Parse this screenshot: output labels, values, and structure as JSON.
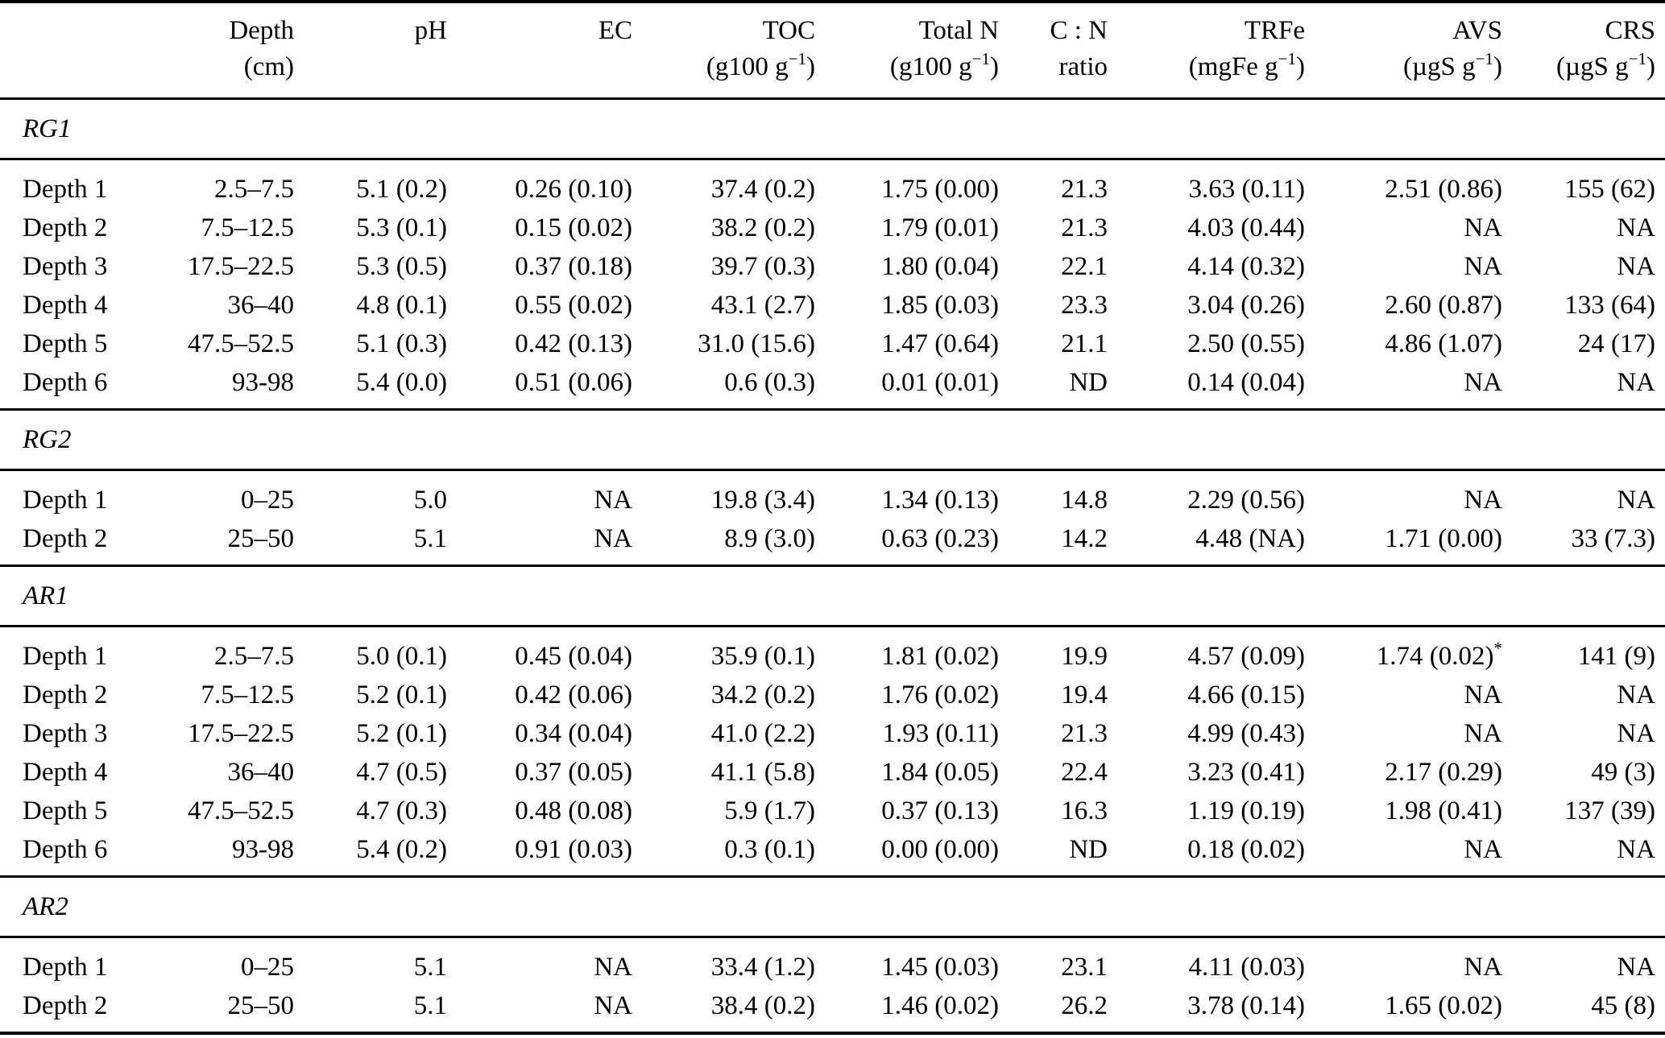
{
  "table": {
    "header": {
      "columns": [
        {
          "id": "row_label",
          "label": "",
          "unit": null
        },
        {
          "id": "depth",
          "label": "Depth",
          "unit": [
            {
              "t": "(cm)"
            }
          ]
        },
        {
          "id": "ph",
          "label": "pH",
          "unit": null
        },
        {
          "id": "ec",
          "label": "EC",
          "unit": null
        },
        {
          "id": "toc",
          "label": "TOC",
          "unit": [
            {
              "t": "(g100 g"
            },
            {
              "t": "−1",
              "sup": true
            },
            {
              "t": ")"
            }
          ]
        },
        {
          "id": "total_n",
          "label": "Total N",
          "unit": [
            {
              "t": "(g100 g"
            },
            {
              "t": "−1",
              "sup": true
            },
            {
              "t": ")"
            }
          ]
        },
        {
          "id": "cn_ratio",
          "label": "C : N",
          "unit": [
            {
              "t": "ratio"
            }
          ]
        },
        {
          "id": "trfe",
          "label": "TRFe",
          "unit": [
            {
              "t": "(mgFe g"
            },
            {
              "t": "−1",
              "sup": true
            },
            {
              "t": ")"
            }
          ]
        },
        {
          "id": "avs",
          "label": "AVS",
          "unit": [
            {
              "t": "(µgS g"
            },
            {
              "t": "−1",
              "sup": true
            },
            {
              "t": ")"
            }
          ]
        },
        {
          "id": "crs",
          "label": "CRS",
          "unit": [
            {
              "t": "(µgS g"
            },
            {
              "t": "−1",
              "sup": true
            },
            {
              "t": ")"
            }
          ]
        }
      ]
    },
    "sections": [
      {
        "name": "RG1",
        "rows": [
          [
            "Depth 1",
            "2.5–7.5",
            "5.1 (0.2)",
            "0.26 (0.10)",
            "37.4 (0.2)",
            "1.75 (0.00)",
            "21.3",
            "3.63 (0.11)",
            "2.51 (0.86)",
            "155 (62)"
          ],
          [
            "Depth 2",
            "7.5–12.5",
            "5.3 (0.1)",
            "0.15 (0.02)",
            "38.2 (0.2)",
            "1.79 (0.01)",
            "21.3",
            "4.03 (0.44)",
            "NA",
            "NA"
          ],
          [
            "Depth 3",
            "17.5–22.5",
            "5.3 (0.5)",
            "0.37 (0.18)",
            "39.7 (0.3)",
            "1.80 (0.04)",
            "22.1",
            "4.14 (0.32)",
            "NA",
            "NA"
          ],
          [
            "Depth 4",
            "36–40",
            "4.8 (0.1)",
            "0.55 (0.02)",
            "43.1 (2.7)",
            "1.85 (0.03)",
            "23.3",
            "3.04 (0.26)",
            "2.60 (0.87)",
            "133 (64)"
          ],
          [
            "Depth 5",
            "47.5–52.5",
            "5.1 (0.3)",
            "0.42 (0.13)",
            "31.0 (15.6)",
            "1.47 (0.64)",
            "21.1",
            "2.50 (0.55)",
            "4.86 (1.07)",
            "24 (17)"
          ],
          [
            "Depth 6",
            "93-98",
            "5.4 (0.0)",
            "0.51 (0.06)",
            "0.6 (0.3)",
            "0.01 (0.01)",
            "ND",
            "0.14 (0.04)",
            "NA",
            "NA"
          ]
        ]
      },
      {
        "name": "RG2",
        "rows": [
          [
            "Depth 1",
            "0–25",
            "5.0",
            "NA",
            "19.8 (3.4)",
            "1.34 (0.13)",
            "14.8",
            "2.29 (0.56)",
            "NA",
            "NA"
          ],
          [
            "Depth 2",
            "25–50",
            "5.1",
            "NA",
            "8.9 (3.0)",
            "0.63 (0.23)",
            "14.2",
            "4.48 (NA)",
            "1.71 (0.00)",
            "33 (7.3)"
          ]
        ]
      },
      {
        "name": "AR1",
        "rows": [
          [
            "Depth 1",
            "2.5–7.5",
            "5.0 (0.1)",
            "0.45 (0.04)",
            "35.9 (0.1)",
            "1.81 (0.02)",
            "19.9",
            "4.57 (0.09)",
            "1.74 (0.02)*",
            "141 (9)"
          ],
          [
            "Depth 2",
            "7.5–12.5",
            "5.2 (0.1)",
            "0.42 (0.06)",
            "34.2 (0.2)",
            "1.76 (0.02)",
            "19.4",
            "4.66 (0.15)",
            "NA",
            "NA"
          ],
          [
            "Depth 3",
            "17.5–22.5",
            "5.2 (0.1)",
            "0.34 (0.04)",
            "41.0 (2.2)",
            "1.93 (0.11)",
            "21.3",
            "4.99 (0.43)",
            "NA",
            "NA"
          ],
          [
            "Depth 4",
            "36–40",
            "4.7 (0.5)",
            "0.37 (0.05)",
            "41.1 (5.8)",
            "1.84 (0.05)",
            "22.4",
            "3.23 (0.41)",
            "2.17 (0.29)",
            "49 (3)"
          ],
          [
            "Depth 5",
            "47.5–52.5",
            "4.7 (0.3)",
            "0.48 (0.08)",
            "5.9 (1.7)",
            "0.37 (0.13)",
            "16.3",
            "1.19 (0.19)",
            "1.98 (0.41)",
            "137 (39)"
          ],
          [
            "Depth 6",
            "93-98",
            "5.4 (0.2)",
            "0.91 (0.03)",
            "0.3 (0.1)",
            "0.00 (0.00)",
            "ND",
            "0.18 (0.02)",
            "NA",
            "NA"
          ]
        ]
      },
      {
        "name": "AR2",
        "rows": [
          [
            "Depth 1",
            "0–25",
            "5.1",
            "NA",
            "33.4 (1.2)",
            "1.45 (0.03)",
            "23.1",
            "4.11 (0.03)",
            "NA",
            "NA"
          ],
          [
            "Depth 2",
            "25–50",
            "5.1",
            "NA",
            "38.4 (0.2)",
            "1.46 (0.02)",
            "26.2",
            "3.78 (0.14)",
            "1.65 (0.02)",
            "45 (8)"
          ]
        ]
      }
    ]
  }
}
